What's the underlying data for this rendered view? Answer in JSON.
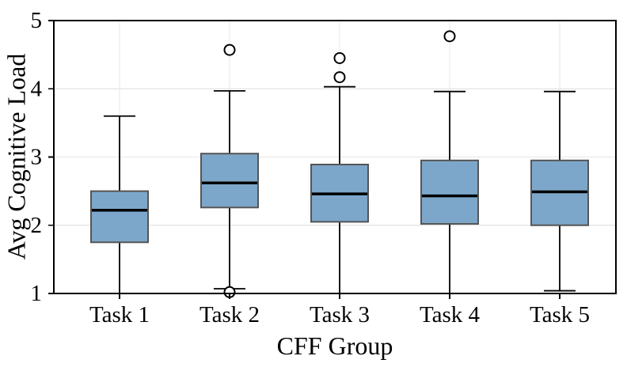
{
  "figure": {
    "background": "#ffffff"
  },
  "chart_data": {
    "type": "boxplot",
    "title": "",
    "xlabel": "CFF Group",
    "ylabel": "Avg Cognitive Load",
    "categories": [
      "Task 1",
      "Task 2",
      "Task 3",
      "Task 4",
      "Task 5"
    ],
    "ylim": [
      1,
      5
    ],
    "yticks": [
      1,
      2,
      3,
      4,
      5
    ],
    "grid": true,
    "legend": "none",
    "boxes": [
      {
        "label": "Task 1",
        "whisker_low": 1.0,
        "q1": 1.75,
        "median": 2.22,
        "q3": 2.5,
        "whisker_high": 3.6,
        "outliers": []
      },
      {
        "label": "Task 2",
        "whisker_low": 1.07,
        "q1": 2.26,
        "median": 2.62,
        "q3": 3.05,
        "whisker_high": 3.97,
        "outliers": [
          4.57,
          1.02
        ]
      },
      {
        "label": "Task 3",
        "whisker_low": 1.0,
        "q1": 2.05,
        "median": 2.46,
        "q3": 2.89,
        "whisker_high": 4.03,
        "outliers": [
          4.17,
          4.45
        ]
      },
      {
        "label": "Task 4",
        "whisker_low": 1.0,
        "q1": 2.02,
        "median": 2.43,
        "q3": 2.95,
        "whisker_high": 3.96,
        "outliers": [
          4.77
        ]
      },
      {
        "label": "Task 5",
        "whisker_low": 1.04,
        "q1": 2.0,
        "median": 2.49,
        "q3": 2.95,
        "whisker_high": 3.96,
        "outliers": []
      }
    ],
    "colors": {
      "box_fill": "#7da7ca",
      "box_edge": "#555555",
      "median": "#000000",
      "whisker": "#000000",
      "outlier_edge": "#000000",
      "outlier_fill": "#ffffff",
      "grid": "#e7e7e7",
      "spine": "#000000",
      "text": "#000000"
    }
  }
}
